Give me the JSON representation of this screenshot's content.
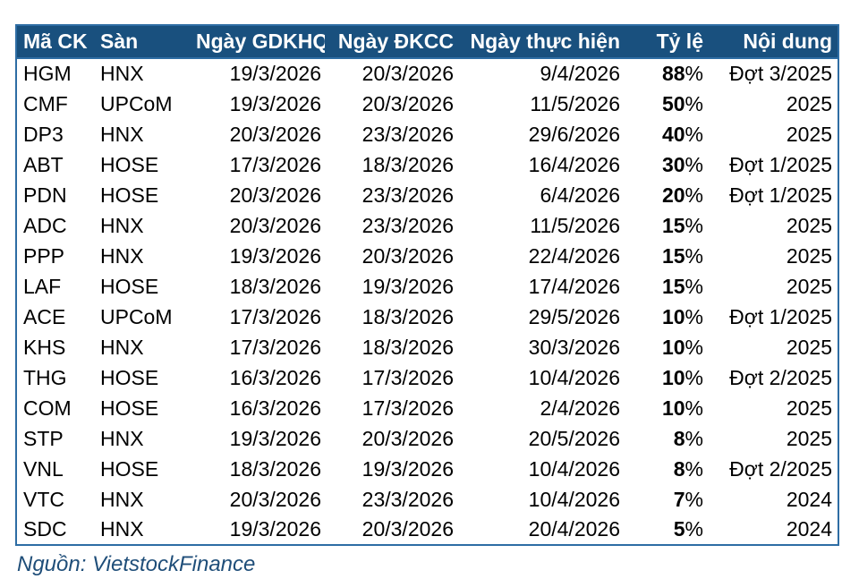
{
  "colors": {
    "header_bg": "#19507E",
    "header_text": "#FFFFFF",
    "table_border": "#2E6DA4",
    "row_bg": "#FFFFFF",
    "row_text": "#000000",
    "source_text": "#1F4E79"
  },
  "chart_data": {
    "type": "table",
    "title": "",
    "legend_position": "none",
    "columns": [
      {
        "key": "ma-ck",
        "label": "Mã CK",
        "align": "left"
      },
      {
        "key": "san",
        "label": "Sàn",
        "align": "left"
      },
      {
        "key": "ngay-gdkhq",
        "label": "Ngày GDKHQ",
        "align": "right"
      },
      {
        "key": "ngay-dkcc",
        "label": "Ngày ĐKCC",
        "align": "right"
      },
      {
        "key": "ngay-thuc-hien",
        "label": "Ngày thực hiện",
        "align": "right"
      },
      {
        "key": "ty-le",
        "label": "Tỷ lệ",
        "align": "right"
      },
      {
        "key": "noi-dung",
        "label": "Nội dung",
        "align": "right"
      }
    ],
    "rows": [
      [
        "HGM",
        "HNX",
        "19/3/2026",
        "20/3/2026",
        "9/4/2026",
        "88%",
        "Đợt 3/2025"
      ],
      [
        "CMF",
        "UPCoM",
        "19/3/2026",
        "20/3/2026",
        "11/5/2026",
        "50%",
        "2025"
      ],
      [
        "DP3",
        "HNX",
        "20/3/2026",
        "23/3/2026",
        "29/6/2026",
        "40%",
        "2025"
      ],
      [
        "ABT",
        "HOSE",
        "17/3/2026",
        "18/3/2026",
        "16/4/2026",
        "30%",
        "Đợt 1/2025"
      ],
      [
        "PDN",
        "HOSE",
        "20/3/2026",
        "23/3/2026",
        "6/4/2026",
        "20%",
        "Đợt 1/2025"
      ],
      [
        "ADC",
        "HNX",
        "20/3/2026",
        "23/3/2026",
        "11/5/2026",
        "15%",
        "2025"
      ],
      [
        "PPP",
        "HNX",
        "19/3/2026",
        "20/3/2026",
        "22/4/2026",
        "15%",
        "2025"
      ],
      [
        "LAF",
        "HOSE",
        "18/3/2026",
        "19/3/2026",
        "17/4/2026",
        "15%",
        "2025"
      ],
      [
        "ACE",
        "UPCoM",
        "17/3/2026",
        "18/3/2026",
        "29/5/2026",
        "10%",
        "Đợt 1/2025"
      ],
      [
        "KHS",
        "HNX",
        "17/3/2026",
        "18/3/2026",
        "30/3/2026",
        "10%",
        "2025"
      ],
      [
        "THG",
        "HOSE",
        "16/3/2026",
        "17/3/2026",
        "10/4/2026",
        "10%",
        "Đợt 2/2025"
      ],
      [
        "COM",
        "HOSE",
        "16/3/2026",
        "17/3/2026",
        "2/4/2026",
        "10%",
        "2025"
      ],
      [
        "STP",
        "HNX",
        "19/3/2026",
        "20/3/2026",
        "20/5/2026",
        "8%",
        "2025"
      ],
      [
        "VNL",
        "HOSE",
        "18/3/2026",
        "19/3/2026",
        "10/4/2026",
        "8%",
        "Đợt 2/2025"
      ],
      [
        "VTC",
        "HNX",
        "20/3/2026",
        "23/3/2026",
        "10/4/2026",
        "7%",
        "2024"
      ],
      [
        "SDC",
        "HNX",
        "19/3/2026",
        "20/3/2026",
        "20/4/2026",
        "5%",
        "2024"
      ]
    ]
  },
  "footer": {
    "source_label": "Nguồn: VietstockFinance"
  }
}
